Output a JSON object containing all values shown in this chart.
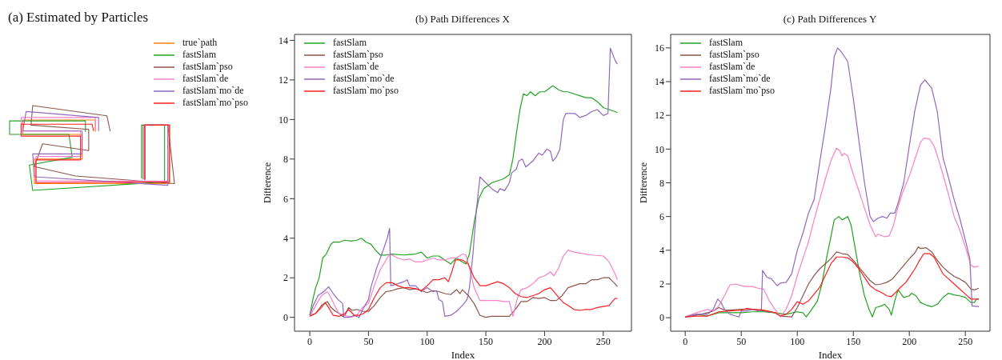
{
  "chart_data": [
    {
      "type": "other",
      "title": "(a) Estimated by Particles",
      "legend": "top right",
      "series": [
        {
          "name": "true`path",
          "color": "#ff7f0e"
        },
        {
          "name": "fastSlam",
          "color": "#22a322"
        },
        {
          "name": "fastSlam`pso",
          "color": "#8c564b"
        },
        {
          "name": "fastSlam`de",
          "color": "#f780c8"
        },
        {
          "name": "fastSlam`mo`de",
          "color": "#9467bd"
        },
        {
          "name": "fastSlam`mo`pso",
          "color": "#ff2020"
        }
      ]
    },
    {
      "type": "line",
      "title": "(b) Path Differences X",
      "xlabel": "Index",
      "ylabel": "Difference",
      "xlim": [
        -13,
        274
      ],
      "ylim": [
        -0.7,
        14.3
      ],
      "xticks": [
        0,
        50,
        100,
        150,
        200,
        250
      ],
      "yticks": [
        0,
        2,
        4,
        6,
        8,
        10,
        12,
        14
      ],
      "grid": false,
      "legend": "top left",
      "series": [
        {
          "name": "fastSlam",
          "color": "#22a322",
          "x": [
            0,
            3,
            5,
            8,
            11,
            14,
            18,
            20,
            25,
            30,
            35,
            40,
            44,
            48,
            52,
            56,
            60,
            65,
            70,
            80,
            90,
            95,
            100,
            105,
            110,
            115,
            120,
            125,
            130,
            133,
            136,
            140,
            144,
            148,
            155,
            160,
            165,
            170,
            173,
            176,
            179,
            182,
            185,
            188,
            192,
            196,
            200,
            207,
            212,
            216,
            220,
            225,
            230,
            235,
            240,
            245,
            250,
            255,
            260,
            262
          ],
          "values": [
            0.1,
            1.0,
            1.5,
            2.0,
            3.0,
            3.2,
            3.7,
            3.8,
            3.8,
            3.9,
            3.85,
            3.9,
            4.0,
            3.8,
            3.7,
            3.4,
            3.15,
            3.15,
            3.2,
            3.15,
            3.2,
            3.3,
            3.0,
            3.1,
            3.1,
            2.9,
            2.7,
            3.0,
            2.8,
            2.7,
            3.2,
            4.8,
            6.0,
            6.5,
            6.8,
            6.9,
            7.0,
            7.2,
            8.0,
            9.3,
            10.5,
            11.3,
            11.2,
            11.4,
            11.2,
            11.4,
            11.4,
            11.7,
            11.5,
            11.4,
            11.4,
            11.3,
            11.2,
            11.1,
            11.1,
            10.9,
            10.6,
            10.5,
            10.4,
            10.35
          ]
        },
        {
          "name": "fastSlam`pso",
          "color": "#8c564b",
          "x": [
            0,
            5,
            10,
            15,
            18,
            22,
            25,
            28,
            30,
            33,
            36,
            40,
            45,
            50,
            55,
            60,
            65,
            70,
            75,
            80,
            85,
            90,
            95,
            100,
            105,
            110,
            115,
            120,
            125,
            128,
            130,
            135,
            140,
            145,
            150,
            155,
            160,
            165,
            170,
            175,
            180,
            185,
            190,
            195,
            200,
            205,
            210,
            215,
            220,
            225,
            230,
            235,
            240,
            245,
            250,
            255,
            260,
            262
          ],
          "values": [
            0.1,
            0.2,
            0.6,
            0.8,
            0.5,
            0.3,
            0.2,
            0.05,
            0.1,
            0.5,
            0.35,
            0.4,
            0.3,
            0.3,
            0.6,
            1.0,
            1.3,
            1.35,
            1.45,
            1.5,
            1.4,
            1.45,
            1.35,
            1.25,
            1.35,
            1.3,
            1.2,
            1.15,
            1.4,
            1.2,
            1.4,
            1.1,
            0.7,
            0.1,
            0.0,
            0.05,
            0.05,
            0.05,
            0.05,
            0.4,
            0.8,
            0.8,
            1.0,
            0.95,
            1.0,
            0.85,
            0.85,
            1.1,
            1.5,
            1.6,
            1.7,
            1.7,
            1.9,
            1.9,
            2.0,
            2.0,
            1.7,
            1.55
          ]
        },
        {
          "name": "fastSlam`de",
          "color": "#f780c8",
          "x": [
            0,
            5,
            10,
            15,
            18,
            22,
            25,
            30,
            35,
            40,
            45,
            50,
            55,
            60,
            65,
            68,
            75,
            80,
            85,
            90,
            95,
            100,
            105,
            110,
            115,
            120,
            125,
            130,
            133,
            136,
            140,
            145,
            150,
            155,
            160,
            165,
            170,
            173,
            177,
            180,
            185,
            190,
            195,
            200,
            205,
            208,
            212,
            216,
            220,
            225,
            230,
            240,
            250,
            255,
            260,
            262
          ],
          "values": [
            0.05,
            0.6,
            1.1,
            1.3,
            1.0,
            0.5,
            0.2,
            0.1,
            0.0,
            0.1,
            0.5,
            0.7,
            1.6,
            2.4,
            2.9,
            3.2,
            3.0,
            2.9,
            2.95,
            2.8,
            2.8,
            2.9,
            3.0,
            2.9,
            2.9,
            3.0,
            3.0,
            3.2,
            3.15,
            2.5,
            1.5,
            0.85,
            0.85,
            0.85,
            0.85,
            0.8,
            0.8,
            0.05,
            1.0,
            1.4,
            1.5,
            1.7,
            2.0,
            2.1,
            2.3,
            2.1,
            2.5,
            3.1,
            3.4,
            3.3,
            3.25,
            3.15,
            3.1,
            2.8,
            2.2,
            1.9
          ]
        },
        {
          "name": "fastSlam`mo`de",
          "color": "#9467bd",
          "x": [
            0,
            3,
            7,
            12,
            16,
            20,
            24,
            28,
            29,
            33,
            38,
            42,
            46,
            50,
            52,
            57,
            62,
            66,
            68,
            69,
            75,
            80,
            83,
            85,
            90,
            95,
            100,
            105,
            108,
            110,
            113,
            115,
            120,
            125,
            130,
            134,
            136,
            139,
            142,
            145,
            150,
            155,
            160,
            162,
            166,
            170,
            172,
            176,
            178,
            181,
            184,
            190,
            195,
            198,
            202,
            205,
            207,
            210,
            213,
            216,
            218,
            222,
            226,
            230,
            235,
            240,
            245,
            250,
            254,
            256,
            260,
            262
          ],
          "values": [
            0.1,
            0.6,
            1.1,
            1.3,
            1.55,
            1.2,
            0.9,
            0.7,
            0.0,
            0.0,
            0.1,
            0.0,
            0.5,
            0.9,
            1.5,
            2.5,
            3.3,
            4.0,
            4.5,
            1.6,
            1.7,
            1.8,
            1.9,
            1.6,
            1.6,
            1.3,
            1.5,
            1.3,
            1.35,
            0.9,
            0.8,
            0.05,
            0.1,
            0.3,
            0.6,
            0.9,
            1.5,
            3.2,
            5.5,
            7.1,
            6.8,
            6.5,
            6.3,
            6.5,
            6.4,
            6.8,
            7.3,
            7.5,
            7.9,
            8.0,
            7.6,
            7.9,
            8.3,
            8.2,
            8.5,
            8.4,
            7.9,
            8.1,
            8.5,
            10.0,
            10.3,
            10.3,
            10.3,
            10.1,
            10.2,
            10.4,
            10.5,
            10.2,
            10.3,
            13.6,
            13.0,
            12.8
          ]
        },
        {
          "name": "fastSlam`mo`pso",
          "color": "#ff2020",
          "x": [
            0,
            5,
            10,
            13,
            16,
            20,
            25,
            30,
            33,
            38,
            42,
            46,
            50,
            55,
            60,
            65,
            70,
            75,
            80,
            85,
            90,
            95,
            100,
            105,
            110,
            115,
            118,
            121,
            124,
            130,
            135,
            140,
            145,
            150,
            155,
            160,
            165,
            170,
            175,
            180,
            185,
            190,
            195,
            200,
            205,
            208,
            212,
            216,
            220,
            225,
            230,
            235,
            240,
            245,
            250,
            255,
            260,
            262
          ],
          "values": [
            0.05,
            0.2,
            0.5,
            0.75,
            0.5,
            0.1,
            0.05,
            0.2,
            0.4,
            0.1,
            0.1,
            0.2,
            0.4,
            1.0,
            1.5,
            1.75,
            1.75,
            1.6,
            1.5,
            1.5,
            1.45,
            1.35,
            1.6,
            1.9,
            1.9,
            2.0,
            1.8,
            2.3,
            2.9,
            2.9,
            2.7,
            2.0,
            1.6,
            1.6,
            1.7,
            1.8,
            1.7,
            1.5,
            1.2,
            1.05,
            1.0,
            1.1,
            1.2,
            1.4,
            1.5,
            1.3,
            1.0,
            0.75,
            0.6,
            0.4,
            0.35,
            0.4,
            0.4,
            0.5,
            0.55,
            0.6,
            0.95,
            0.95
          ]
        }
      ]
    },
    {
      "type": "line",
      "title": "(c) Path Differences Y",
      "xlabel": "Index",
      "ylabel": "Difference",
      "xlim": [
        -13,
        272
      ],
      "ylim": [
        -0.8,
        16.8
      ],
      "xticks": [
        0,
        50,
        100,
        150,
        200,
        250
      ],
      "yticks": [
        0,
        2,
        4,
        6,
        8,
        10,
        12,
        14,
        16
      ],
      "grid": false,
      "legend": "top left",
      "series": [
        {
          "name": "fastSlam",
          "color": "#22a322",
          "x": [
            0,
            10,
            20,
            30,
            40,
            50,
            60,
            70,
            80,
            90,
            100,
            105,
            108,
            112,
            118,
            122,
            126,
            130,
            133,
            137,
            140,
            145,
            148,
            152,
            156,
            160,
            164,
            167,
            170,
            175,
            178,
            182,
            184,
            187,
            190,
            195,
            200,
            202,
            206,
            210,
            215,
            220,
            225,
            230,
            235,
            240,
            245,
            250,
            255,
            258,
            260,
            262
          ],
          "values": [
            0.05,
            0.2,
            0.1,
            0.3,
            0.3,
            0.3,
            0.35,
            0.35,
            0.3,
            0.2,
            0.35,
            0.3,
            0.05,
            0.4,
            1.0,
            2.0,
            3.5,
            4.8,
            5.8,
            6.0,
            5.8,
            6.0,
            5.5,
            4.0,
            2.5,
            1.3,
            0.5,
            0.05,
            0.6,
            0.7,
            0.8,
            0.5,
            0.15,
            1.0,
            1.65,
            1.2,
            1.3,
            1.45,
            1.3,
            0.9,
            0.75,
            0.65,
            0.8,
            1.2,
            1.45,
            1.35,
            1.3,
            1.2,
            0.9,
            0.9,
            1.1,
            1.1
          ]
        },
        {
          "name": "fastSlam`pso",
          "color": "#8c564b",
          "x": [
            0,
            10,
            20,
            25,
            30,
            35,
            40,
            50,
            60,
            70,
            80,
            85,
            95,
            100,
            105,
            110,
            115,
            120,
            125,
            130,
            135,
            140,
            145,
            150,
            155,
            160,
            165,
            170,
            175,
            180,
            185,
            190,
            195,
            200,
            205,
            208,
            210,
            215,
            220,
            225,
            230,
            235,
            240,
            245,
            250,
            255,
            258,
            262
          ],
          "values": [
            0.05,
            0.15,
            0.3,
            0.4,
            0.6,
            0.45,
            0.45,
            0.5,
            0.5,
            0.4,
            0.3,
            0.1,
            0.05,
            0.6,
            1.3,
            2.0,
            2.5,
            2.9,
            3.2,
            3.5,
            3.9,
            3.8,
            3.75,
            3.4,
            3.0,
            2.6,
            2.2,
            1.95,
            2.0,
            2.1,
            2.3,
            2.7,
            3.1,
            3.5,
            3.85,
            4.2,
            4.1,
            4.15,
            3.9,
            3.4,
            3.0,
            2.7,
            2.45,
            2.3,
            2.1,
            1.7,
            1.65,
            1.75
          ]
        },
        {
          "name": "fastSlam`de",
          "color": "#f780c8",
          "x": [
            0,
            10,
            15,
            20,
            25,
            30,
            35,
            40,
            45,
            50,
            55,
            60,
            65,
            70,
            75,
            80,
            85,
            90,
            95,
            100,
            105,
            110,
            115,
            120,
            125,
            130,
            135,
            138,
            140,
            142,
            145,
            150,
            155,
            160,
            165,
            170,
            172,
            178,
            182,
            186,
            190,
            195,
            200,
            205,
            210,
            213,
            218,
            222,
            226,
            230,
            235,
            240,
            245,
            250,
            255,
            258,
            262
          ],
          "values": [
            0.05,
            0.3,
            0.4,
            0.5,
            0.4,
            0.7,
            1.3,
            1.95,
            2.0,
            1.9,
            1.85,
            1.85,
            1.75,
            1.7,
            1.0,
            0.5,
            0.05,
            0.5,
            1.3,
            2.5,
            3.5,
            4.5,
            5.8,
            7.0,
            8.2,
            9.3,
            10.05,
            9.9,
            9.6,
            9.75,
            9.6,
            8.5,
            7.5,
            6.5,
            5.5,
            4.8,
            4.95,
            4.8,
            4.85,
            5.5,
            6.6,
            7.6,
            8.4,
            9.4,
            10.4,
            10.65,
            10.6,
            10.2,
            9.4,
            8.5,
            7.3,
            6.0,
            5.2,
            4.2,
            3.1,
            3.0,
            3.05
          ]
        },
        {
          "name": "fastSlam`mo`de",
          "color": "#9467bd",
          "x": [
            0,
            10,
            20,
            25,
            29,
            32,
            35,
            40,
            45,
            48,
            50,
            55,
            60,
            65,
            68,
            69,
            73,
            77,
            82,
            85,
            90,
            95,
            100,
            105,
            110,
            115,
            120,
            125,
            130,
            133,
            136,
            140,
            145,
            150,
            155,
            160,
            165,
            168,
            172,
            176,
            180,
            183,
            187,
            190,
            195,
            200,
            205,
            210,
            214,
            220,
            225,
            230,
            235,
            240,
            245,
            250,
            254,
            256,
            262
          ],
          "values": [
            0.05,
            0.2,
            0.2,
            0.5,
            1.1,
            0.9,
            0.5,
            0.2,
            0.1,
            0.05,
            0.4,
            0.4,
            0.5,
            0.4,
            0.5,
            2.8,
            2.4,
            2.3,
            1.9,
            2.05,
            2.1,
            2.6,
            4.0,
            5.0,
            6.2,
            7.0,
            9.2,
            11.3,
            13.6,
            15.5,
            16.0,
            15.7,
            15.2,
            13.0,
            10.5,
            8.0,
            6.0,
            5.7,
            5.9,
            6.0,
            5.9,
            6.2,
            6.2,
            6.8,
            8.0,
            10.2,
            12.3,
            13.8,
            14.1,
            13.6,
            12.2,
            9.5,
            8.3,
            7.0,
            5.9,
            4.6,
            3.5,
            0.7,
            0.65
          ]
        },
        {
          "name": "fastSlam`mo`pso",
          "color": "#ff2020",
          "x": [
            0,
            10,
            20,
            30,
            40,
            50,
            55,
            60,
            70,
            80,
            85,
            90,
            95,
            100,
            105,
            110,
            115,
            120,
            125,
            130,
            135,
            140,
            145,
            150,
            155,
            160,
            165,
            170,
            175,
            180,
            184,
            188,
            192,
            197,
            200,
            205,
            210,
            213,
            218,
            222,
            226,
            230,
            235,
            240,
            245,
            250,
            255,
            258,
            262
          ],
          "values": [
            0.05,
            0.1,
            0.1,
            0.35,
            0.4,
            0.45,
            0.55,
            0.5,
            0.45,
            0.3,
            0.1,
            0.2,
            0.5,
            0.95,
            0.8,
            1.0,
            1.4,
            1.8,
            2.5,
            3.2,
            3.6,
            3.6,
            3.55,
            3.3,
            2.9,
            2.4,
            1.9,
            1.65,
            1.5,
            1.3,
            1.25,
            1.5,
            1.8,
            2.1,
            2.4,
            2.9,
            3.5,
            3.8,
            3.8,
            3.6,
            3.1,
            2.6,
            2.3,
            2.0,
            1.7,
            1.4,
            1.1,
            1.1,
            1.1
          ]
        }
      ]
    }
  ]
}
